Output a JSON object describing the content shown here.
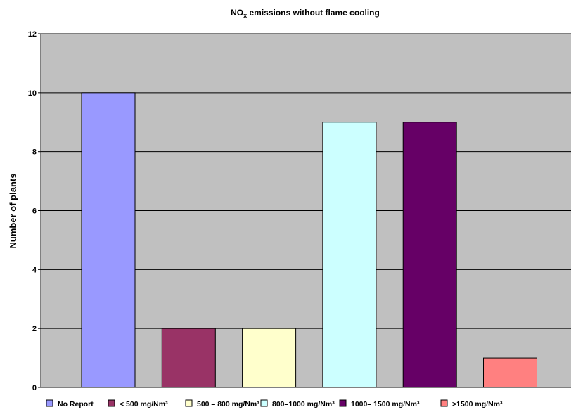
{
  "chart_data": {
    "type": "bar",
    "title_main": "NO",
    "title_sub": "x",
    "title_rest": " emissions without flame cooling",
    "ylabel": "Number of plants",
    "xlabel": "",
    "ylim": [
      0,
      12
    ],
    "yticks": [
      0,
      2,
      4,
      6,
      8,
      10,
      12
    ],
    "grid": true,
    "legend_position": "bottom",
    "plot_background": "#c0c0c0",
    "categories": [
      "No Report",
      "< 500 mg/Nm³",
      "500 – 800 mg/Nm³",
      "800–1000 mg/Nm³",
      "1000– 1500 mg/Nm³",
      ">1500 mg/Nm³"
    ],
    "values": [
      10,
      2,
      2,
      9,
      9,
      1
    ],
    "colors": [
      "#9999ff",
      "#993366",
      "#ffffcc",
      "#ccffff",
      "#660066",
      "#ff8080"
    ]
  }
}
